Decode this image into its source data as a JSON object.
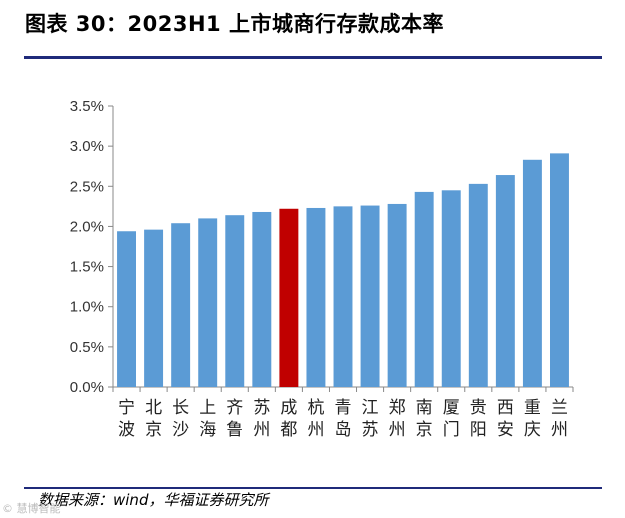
{
  "title": "图表 30：2023H1 上市城商行存款成本率",
  "source": "数据来源：wind，华福证券研究所",
  "watermark": "© 慧博智能",
  "colors": {
    "bar": "#5b9bd5",
    "highlight": "#c00000",
    "axis": "#888888",
    "rule": "#1f2a7a"
  },
  "chart_data": {
    "type": "bar",
    "title": "2023H1 上市城商行存款成本率",
    "xlabel": "",
    "ylabel": "",
    "ylim": [
      0,
      3.5
    ],
    "yticks": [
      "0.0%",
      "0.5%",
      "1.0%",
      "1.5%",
      "2.0%",
      "2.5%",
      "3.0%",
      "3.5%"
    ],
    "grid": false,
    "categories": [
      "宁波",
      "北京",
      "长沙",
      "上海",
      "齐鲁",
      "苏州",
      "成都",
      "杭州",
      "青岛",
      "江苏",
      "郑州",
      "南京",
      "厦门",
      "贵阳",
      "西安",
      "重庆",
      "兰州"
    ],
    "values": [
      1.94,
      1.96,
      2.04,
      2.1,
      2.14,
      2.18,
      2.22,
      2.23,
      2.25,
      2.26,
      2.28,
      2.43,
      2.45,
      2.53,
      2.64,
      2.83,
      2.91
    ],
    "highlight": "成都"
  }
}
